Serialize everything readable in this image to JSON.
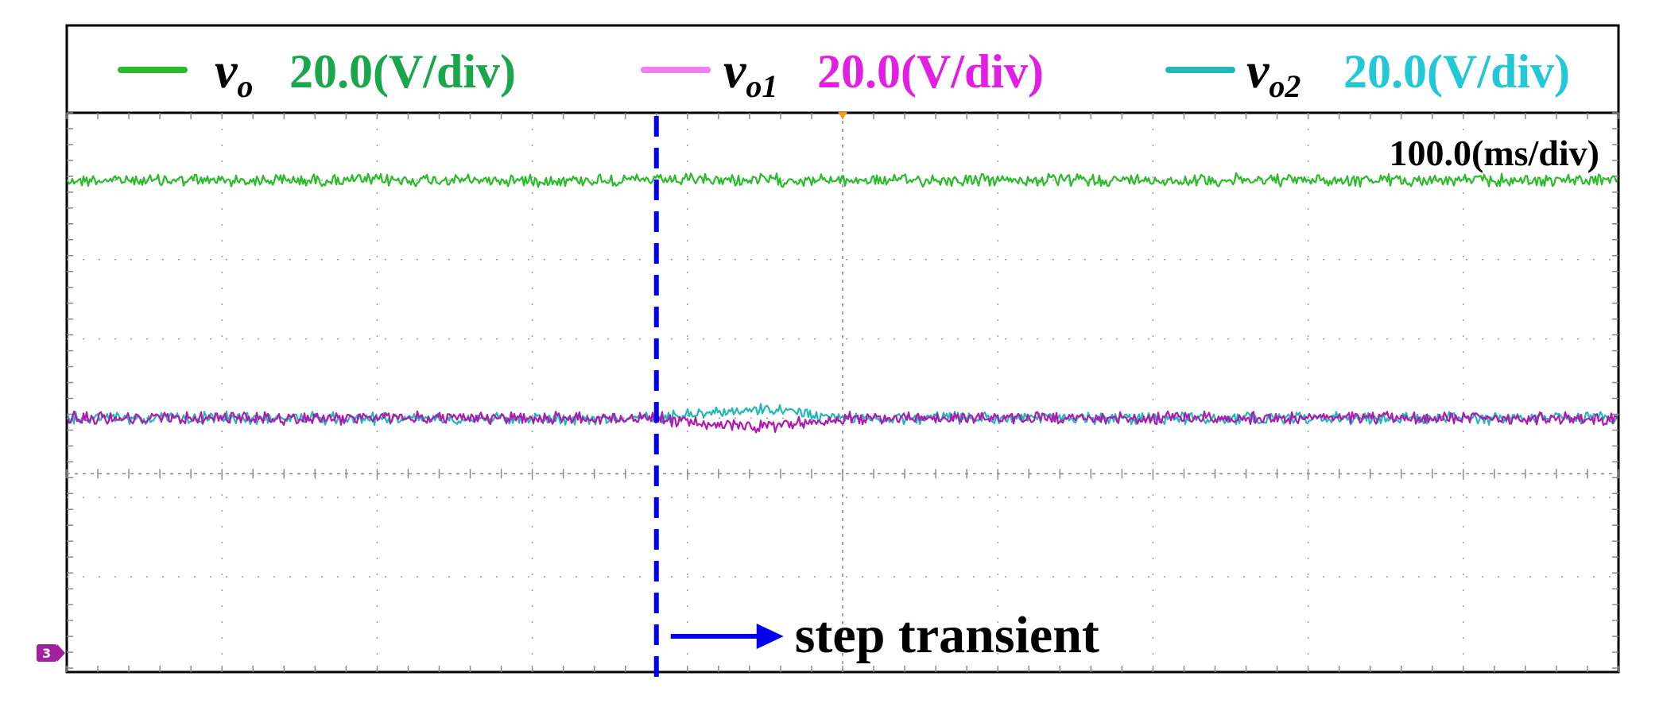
{
  "chart_data": {
    "type": "line",
    "title": "",
    "xlabel": "",
    "ylabel": "",
    "time_scale": "100.0(ms/div)",
    "grid": true,
    "divisions": {
      "x": 10,
      "y": 7
    },
    "xlim": [
      0,
      1000
    ],
    "x_unit": "ms",
    "series": [
      {
        "name": "v_o",
        "symbol": "v",
        "subscript": "o",
        "scale": "20.0(V/div)",
        "color": "#2bbb2b",
        "label_color": "#1aa64a",
        "level_div": 6.0,
        "transient": null
      },
      {
        "name": "v_o1",
        "symbol": "v",
        "subscript": "o1",
        "scale": "20.0(V/div)",
        "color": "#b01ab0",
        "label_color": "#e21ee2",
        "level_div": 3.0,
        "transient": {
          "start_ms": 380,
          "end_ms": 500,
          "peak_div": -0.1
        }
      },
      {
        "name": "v_o2",
        "symbol": "v",
        "subscript": "o2",
        "scale": "20.0(V/div)",
        "color": "#22b8b8",
        "label_color": "#22c8d6",
        "level_div": 3.0,
        "transient": {
          "start_ms": 380,
          "end_ms": 500,
          "peak_div": 0.1
        }
      }
    ],
    "annotations": [
      {
        "type": "vline",
        "x_ms": 380,
        "style": "dashed",
        "color": "#0000ee"
      },
      {
        "type": "arrow_text",
        "text": "step transient",
        "x_ms": 388,
        "y_div": 0.25,
        "color": "#0000ee"
      }
    ],
    "ground_marker": {
      "label": "3",
      "level_div": 0,
      "color": "#a020a0"
    },
    "trigger_marker": {
      "x_ms": 500,
      "color": "#ff9900"
    }
  }
}
